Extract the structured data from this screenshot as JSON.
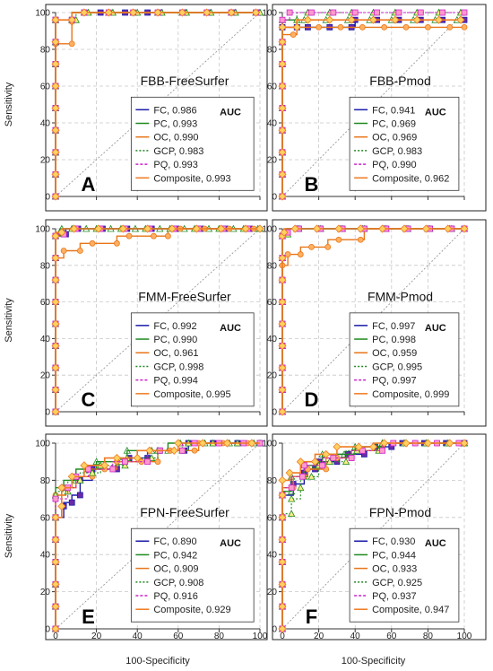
{
  "figure": {
    "ylabel": "Sensitivity",
    "xlabel": "100-Specificity",
    "legend_header": "AUC"
  },
  "colors": {
    "FC": "#1c1ca8",
    "PC": "#1e8a1e",
    "OC": "#e8761a",
    "GCP": "#1e8a1e",
    "PQ": "#cc22cc",
    "Composite": "#ee7a22",
    "diagonal": "#999999",
    "grid": "#c8c8c8",
    "gcp_marker_fill": "#ffee88",
    "pq_marker_fill": "#ff99cc",
    "composite_marker_fill": "#ffd060",
    "fc_marker_fill": "#6a2aa8"
  },
  "chart_data": [
    {
      "type": "line",
      "panel_letter": "A",
      "title": "FBB-FreeSurfer",
      "xlim": [
        0,
        100
      ],
      "ylim": [
        0,
        100
      ],
      "xticks": [
        0,
        20,
        40,
        60,
        80,
        100
      ],
      "yticks": [
        0,
        20,
        40,
        60,
        80,
        100
      ],
      "grid": true,
      "legend_position": "bottom-right",
      "series": [
        {
          "name": "FC, 0.986",
          "key": "FC",
          "x": [
            0,
            0,
            8,
            8,
            16,
            45,
            45,
            100
          ],
          "y": [
            0,
            96,
            96,
            100,
            100,
            100,
            100,
            100
          ]
        },
        {
          "name": "PC, 0.993",
          "key": "PC",
          "x": [
            0,
            0,
            8,
            8,
            100
          ],
          "y": [
            0,
            96,
            96,
            100,
            100
          ]
        },
        {
          "name": "OC, 0.990",
          "key": "OC",
          "x": [
            0,
            0,
            8,
            8,
            100
          ],
          "y": [
            0,
            83,
            83,
            100,
            100
          ]
        },
        {
          "name": "GCP, 0.983",
          "key": "GCP",
          "x": [
            0,
            0,
            10,
            10,
            100
          ],
          "y": [
            0,
            96,
            96,
            100,
            100
          ]
        },
        {
          "name": "PQ, 0.993",
          "key": "PQ",
          "x": [
            0,
            0,
            8,
            8,
            100
          ],
          "y": [
            0,
            96,
            96,
            100,
            100
          ]
        },
        {
          "name": "Composite, 0.993",
          "key": "Composite",
          "x": [
            0,
            0,
            8,
            8,
            100
          ],
          "y": [
            0,
            96,
            96,
            100,
            100
          ]
        }
      ]
    },
    {
      "type": "line",
      "panel_letter": "B",
      "title": "FBB-Pmod",
      "xlim": [
        0,
        100
      ],
      "ylim": [
        0,
        100
      ],
      "xticks": [
        0,
        20,
        40,
        60,
        80,
        100
      ],
      "yticks": [
        0,
        20,
        40,
        60,
        80,
        100
      ],
      "grid": true,
      "legend_position": "bottom-right",
      "series": [
        {
          "name": "FC, 0.941",
          "key": "FC",
          "x": [
            0,
            0,
            8,
            8,
            40,
            40,
            100
          ],
          "y": [
            0,
            92,
            92,
            92,
            92,
            96,
            96
          ]
        },
        {
          "name": "PC, 0.969",
          "key": "PC",
          "x": [
            0,
            0,
            100
          ],
          "y": [
            0,
            96,
            96
          ]
        },
        {
          "name": "OC, 0.969",
          "key": "OC",
          "x": [
            0,
            0,
            8,
            8,
            100
          ],
          "y": [
            0,
            88,
            88,
            92,
            92
          ]
        },
        {
          "name": "GCP, 0.983",
          "key": "GCP",
          "x": [
            0,
            0,
            8,
            8,
            100
          ],
          "y": [
            0,
            96,
            96,
            100,
            100
          ]
        },
        {
          "name": "PQ, 0.990",
          "key": "PQ",
          "x": [
            0,
            0,
            4,
            4,
            100
          ],
          "y": [
            0,
            96,
            96,
            100,
            100
          ]
        },
        {
          "name": "Composite, 0.962",
          "key": "Composite",
          "x": [
            0,
            0,
            8,
            8,
            100
          ],
          "y": [
            0,
            92,
            92,
            96,
            96
          ]
        }
      ]
    },
    {
      "type": "line",
      "panel_letter": "C",
      "title": "FMM-FreeSurfer",
      "xlim": [
        0,
        100
      ],
      "ylim": [
        0,
        100
      ],
      "xticks": [
        0,
        20,
        40,
        60,
        80,
        100
      ],
      "yticks": [
        0,
        20,
        40,
        60,
        80,
        100
      ],
      "grid": true,
      "legend_position": "bottom-right",
      "series": [
        {
          "name": "FC, 0.992",
          "key": "FC",
          "x": [
            0,
            0,
            5,
            5,
            100
          ],
          "y": [
            0,
            97,
            97,
            100,
            100
          ]
        },
        {
          "name": "PC, 0.990",
          "key": "PC",
          "x": [
            0,
            0,
            3,
            3,
            100
          ],
          "y": [
            0,
            96,
            96,
            100,
            100
          ]
        },
        {
          "name": "OC, 0.961",
          "key": "OC",
          "x": [
            0,
            0,
            4,
            4,
            12,
            12,
            30,
            30,
            55,
            55,
            100
          ],
          "y": [
            0,
            84,
            84,
            88,
            88,
            92,
            92,
            96,
            96,
            100,
            100
          ]
        },
        {
          "name": "GCP, 0.998",
          "key": "GCP",
          "x": [
            0,
            0,
            2,
            2,
            100
          ],
          "y": [
            0,
            98,
            98,
            100,
            100
          ]
        },
        {
          "name": "PQ, 0.994",
          "key": "PQ",
          "x": [
            0,
            0,
            4,
            4,
            100
          ],
          "y": [
            0,
            97,
            97,
            100,
            100
          ]
        },
        {
          "name": "Composite, 0.995",
          "key": "Composite",
          "x": [
            0,
            0,
            3,
            3,
            100
          ],
          "y": [
            0,
            98,
            98,
            100,
            100
          ]
        }
      ]
    },
    {
      "type": "line",
      "panel_letter": "D",
      "title": "FMM-Pmod",
      "xlim": [
        0,
        100
      ],
      "ylim": [
        0,
        100
      ],
      "xticks": [
        0,
        20,
        40,
        60,
        80,
        100
      ],
      "yticks": [
        0,
        20,
        40,
        60,
        80,
        100
      ],
      "grid": true,
      "legend_position": "bottom-right",
      "series": [
        {
          "name": "FC, 0.997",
          "key": "FC",
          "x": [
            0,
            0,
            3,
            3,
            100
          ],
          "y": [
            0,
            98,
            98,
            100,
            100
          ]
        },
        {
          "name": "PC, 0.998",
          "key": "PC",
          "x": [
            0,
            0,
            2,
            2,
            100
          ],
          "y": [
            0,
            98,
            98,
            100,
            100
          ]
        },
        {
          "name": "OC, 0.959",
          "key": "OC",
          "x": [
            0,
            0,
            3,
            3,
            10,
            10,
            25,
            25,
            45,
            45,
            100
          ],
          "y": [
            0,
            80,
            80,
            86,
            86,
            90,
            90,
            94,
            94,
            100,
            100
          ]
        },
        {
          "name": "GCP, 0.995",
          "key": "GCP",
          "x": [
            0,
            0,
            3,
            3,
            100
          ],
          "y": [
            0,
            97,
            97,
            100,
            100
          ]
        },
        {
          "name": "PQ, 0.997",
          "key": "PQ",
          "x": [
            0,
            0,
            3,
            3,
            100
          ],
          "y": [
            0,
            98,
            98,
            100,
            100
          ]
        },
        {
          "name": "Composite, 0.999",
          "key": "Composite",
          "x": [
            0,
            0,
            1,
            1,
            100
          ],
          "y": [
            0,
            98,
            98,
            100,
            100
          ]
        }
      ]
    },
    {
      "type": "line",
      "panel_letter": "E",
      "title": "FPN-FreeSurfer",
      "xlim": [
        0,
        100
      ],
      "ylim": [
        0,
        100
      ],
      "xticks": [
        0,
        20,
        40,
        60,
        80,
        100
      ],
      "yticks": [
        0,
        20,
        40,
        60,
        80,
        100
      ],
      "grid": true,
      "legend_position": "bottom-right",
      "series": [
        {
          "name": "FC, 0.890",
          "key": "FC",
          "x": [
            0,
            0,
            4,
            4,
            8,
            8,
            12,
            12,
            18,
            18,
            30,
            30,
            45,
            45,
            65,
            65,
            100
          ],
          "y": [
            0,
            60,
            60,
            68,
            68,
            72,
            72,
            80,
            80,
            86,
            86,
            92,
            92,
            96,
            96,
            100,
            100
          ]
        },
        {
          "name": "PC, 0.942",
          "key": "PC",
          "x": [
            0,
            0,
            4,
            4,
            10,
            10,
            20,
            20,
            35,
            35,
            55,
            55,
            100
          ],
          "y": [
            0,
            76,
            76,
            80,
            80,
            86,
            86,
            90,
            90,
            96,
            96,
            100,
            100
          ]
        },
        {
          "name": "OC, 0.909",
          "key": "OC",
          "x": [
            0,
            0,
            5,
            5,
            10,
            10,
            18,
            18,
            30,
            30,
            50,
            50,
            70,
            70,
            100
          ],
          "y": [
            0,
            72,
            72,
            76,
            76,
            82,
            82,
            86,
            86,
            90,
            90,
            96,
            96,
            100,
            100
          ]
        },
        {
          "name": "GCP, 0.908",
          "key": "GCP",
          "x": [
            0,
            0,
            6,
            6,
            12,
            12,
            22,
            22,
            35,
            35,
            50,
            50,
            65,
            65,
            100
          ],
          "y": [
            0,
            74,
            74,
            80,
            80,
            84,
            84,
            88,
            88,
            92,
            92,
            96,
            96,
            100,
            100
          ]
        },
        {
          "name": "PQ, 0.916",
          "key": "PQ",
          "x": [
            0,
            0,
            6,
            6,
            10,
            10,
            16,
            16,
            28,
            28,
            45,
            45,
            62,
            62,
            100
          ],
          "y": [
            0,
            70,
            70,
            76,
            76,
            82,
            82,
            86,
            86,
            90,
            90,
            96,
            96,
            100,
            100
          ]
        },
        {
          "name": "Composite, 0.929",
          "key": "Composite",
          "x": [
            0,
            0,
            3,
            3,
            8,
            8,
            14,
            14,
            24,
            24,
            40,
            40,
            60,
            60,
            100
          ],
          "y": [
            0,
            60,
            60,
            76,
            76,
            82,
            82,
            88,
            88,
            92,
            92,
            96,
            96,
            100,
            100
          ]
        }
      ]
    },
    {
      "type": "line",
      "panel_letter": "F",
      "title": "FPN-Pmod",
      "xlim": [
        0,
        100
      ],
      "ylim": [
        0,
        100
      ],
      "xticks": [
        0,
        20,
        40,
        60,
        80,
        100
      ],
      "yticks": [
        0,
        20,
        40,
        60,
        80,
        100
      ],
      "grid": true,
      "legend_position": "bottom-right",
      "series": [
        {
          "name": "FC, 0.930",
          "key": "FC",
          "x": [
            0,
            0,
            6,
            6,
            12,
            12,
            20,
            20,
            30,
            30,
            45,
            45,
            60,
            60,
            100
          ],
          "y": [
            0,
            72,
            72,
            78,
            78,
            86,
            86,
            90,
            90,
            94,
            94,
            98,
            98,
            100,
            100
          ]
        },
        {
          "name": "PC, 0.944",
          "key": "PC",
          "x": [
            0,
            0,
            5,
            5,
            12,
            12,
            22,
            22,
            40,
            40,
            55,
            55,
            100
          ],
          "y": [
            0,
            74,
            74,
            82,
            82,
            88,
            88,
            94,
            94,
            98,
            98,
            100,
            100
          ]
        },
        {
          "name": "OC, 0.933",
          "key": "OC",
          "x": [
            0,
            0,
            6,
            6,
            14,
            14,
            24,
            24,
            38,
            38,
            55,
            55,
            100
          ],
          "y": [
            0,
            76,
            76,
            82,
            82,
            86,
            86,
            92,
            92,
            96,
            96,
            100,
            100
          ]
        },
        {
          "name": "GCP, 0.925",
          "key": "GCP",
          "x": [
            0,
            0,
            5,
            5,
            10,
            10,
            20,
            20,
            35,
            35,
            55,
            55,
            100
          ],
          "y": [
            0,
            62,
            62,
            70,
            70,
            82,
            82,
            90,
            90,
            96,
            96,
            100,
            100
          ]
        },
        {
          "name": "PQ, 0.937",
          "key": "PQ",
          "x": [
            0,
            0,
            5,
            5,
            12,
            12,
            22,
            22,
            38,
            38,
            55,
            55,
            100
          ],
          "y": [
            0,
            76,
            76,
            82,
            82,
            88,
            88,
            92,
            92,
            96,
            96,
            100,
            100
          ]
        },
        {
          "name": "Composite, 0.947",
          "key": "Composite",
          "x": [
            0,
            0,
            4,
            4,
            10,
            10,
            18,
            18,
            30,
            30,
            50,
            50,
            100
          ],
          "y": [
            0,
            80,
            80,
            84,
            84,
            90,
            90,
            94,
            94,
            98,
            98,
            100,
            100
          ]
        }
      ]
    }
  ]
}
